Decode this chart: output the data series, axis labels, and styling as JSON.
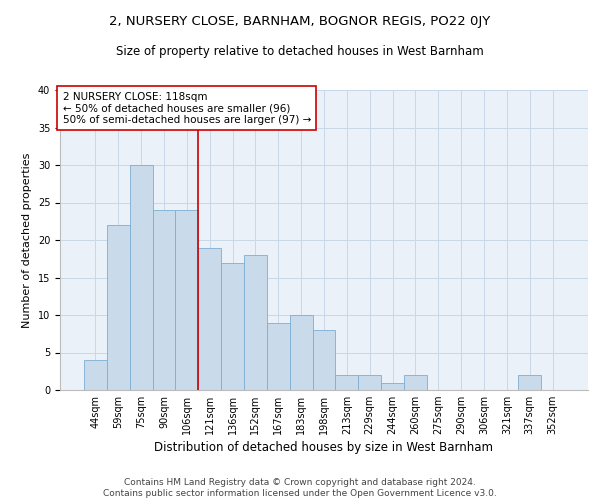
{
  "title1": "2, NURSERY CLOSE, BARNHAM, BOGNOR REGIS, PO22 0JY",
  "title2": "Size of property relative to detached houses in West Barnham",
  "xlabel": "Distribution of detached houses by size in West Barnham",
  "ylabel": "Number of detached properties",
  "categories": [
    "44sqm",
    "59sqm",
    "75sqm",
    "90sqm",
    "106sqm",
    "121sqm",
    "136sqm",
    "152sqm",
    "167sqm",
    "183sqm",
    "198sqm",
    "213sqm",
    "229sqm",
    "244sqm",
    "260sqm",
    "275sqm",
    "290sqm",
    "306sqm",
    "321sqm",
    "337sqm",
    "352sqm"
  ],
  "values": [
    4,
    22,
    30,
    24,
    24,
    19,
    17,
    18,
    9,
    10,
    8,
    2,
    2,
    1,
    2,
    0,
    0,
    0,
    0,
    2,
    0
  ],
  "bar_color": "#c9daea",
  "bar_edge_color": "#7dadd4",
  "vline_color": "#cc0000",
  "vline_x_index": 4.5,
  "annotation_text_line1": "2 NURSERY CLOSE: 118sqm",
  "annotation_text_line2": "← 50% of detached houses are smaller (96)",
  "annotation_text_line3": "50% of semi-detached houses are larger (97) →",
  "annotation_box_color": "#ffffff",
  "annotation_box_edge": "#cc0000",
  "ylim": [
    0,
    40
  ],
  "yticks": [
    0,
    5,
    10,
    15,
    20,
    25,
    30,
    35,
    40
  ],
  "footnote": "Contains HM Land Registry data © Crown copyright and database right 2024.\nContains public sector information licensed under the Open Government Licence v3.0.",
  "title1_fontsize": 9.5,
  "title2_fontsize": 8.5,
  "xlabel_fontsize": 8.5,
  "ylabel_fontsize": 8,
  "tick_fontsize": 7,
  "annotation_fontsize": 7.5,
  "footnote_fontsize": 6.5,
  "grid_color": "#c8d8e8",
  "bg_color": "#eaf1f8"
}
